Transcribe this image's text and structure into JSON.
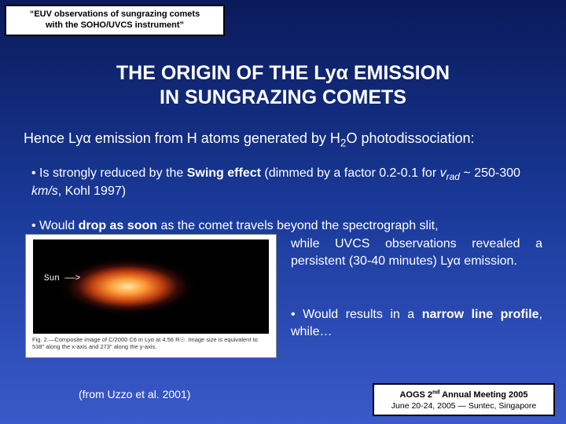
{
  "header": {
    "line1": "“EUV observations of sungrazing comets",
    "line2": "with the SOHO/UVCS instrument”"
  },
  "title": {
    "line1": "THE ORIGIN OF THE Lyα EMISSION",
    "line2": "IN SUNGRAZING COMETS"
  },
  "intro": {
    "pre": "Hence Lyα emission from H atoms generated by H",
    "sub": "2",
    "post": "O photodissociation:"
  },
  "bullet1": {
    "lead": "• Is strongly reduced by  the ",
    "bold": "Swing effect",
    "mid": " (dimmed by a factor 0.2-0.1 for ",
    "var": "v",
    "varsub": "rad",
    "tail": " ~ 250-300 ",
    "unit": "km/s",
    "ref": ", Kohl 1997)"
  },
  "bullet2": {
    "lead": "• Would ",
    "bold": "drop as soon",
    "tail": " as the comet travels beyond the spectrograph slit,",
    "rest": "while UVCS observations revealed a persistent (30-40 minutes) Lyα emission."
  },
  "bullet3": {
    "lead": "• Would results in a ",
    "bold": "narrow line profile",
    "tail": ", while…"
  },
  "figure": {
    "sun_label": "Sun ——>",
    "caption": "Fig. 2.—Composite image of C/2000 C6 in Lyα at 4.56 R☉. Image size is equivalent to 538″ along the x-axis and 273″ along the y-axis."
  },
  "credit": "(from Uzzo et al. 2001)",
  "footer": {
    "title_pre": "AOGS 2",
    "title_sup": "nd",
    "title_post": " Annual Meeting 2005",
    "sub": "June 20-24, 2005 — Suntec, Singapore"
  },
  "colors": {
    "bg_top": "#0a1a5a",
    "bg_mid": "#1a3a9a",
    "bg_bot": "#3a5aca",
    "box_bg": "#ffffff",
    "box_border": "#000000",
    "text": "#ffffff"
  },
  "typography": {
    "title_fontsize": 25,
    "body_fontsize": 16,
    "header_fontsize": 11,
    "footer_fontsize": 10.5
  }
}
